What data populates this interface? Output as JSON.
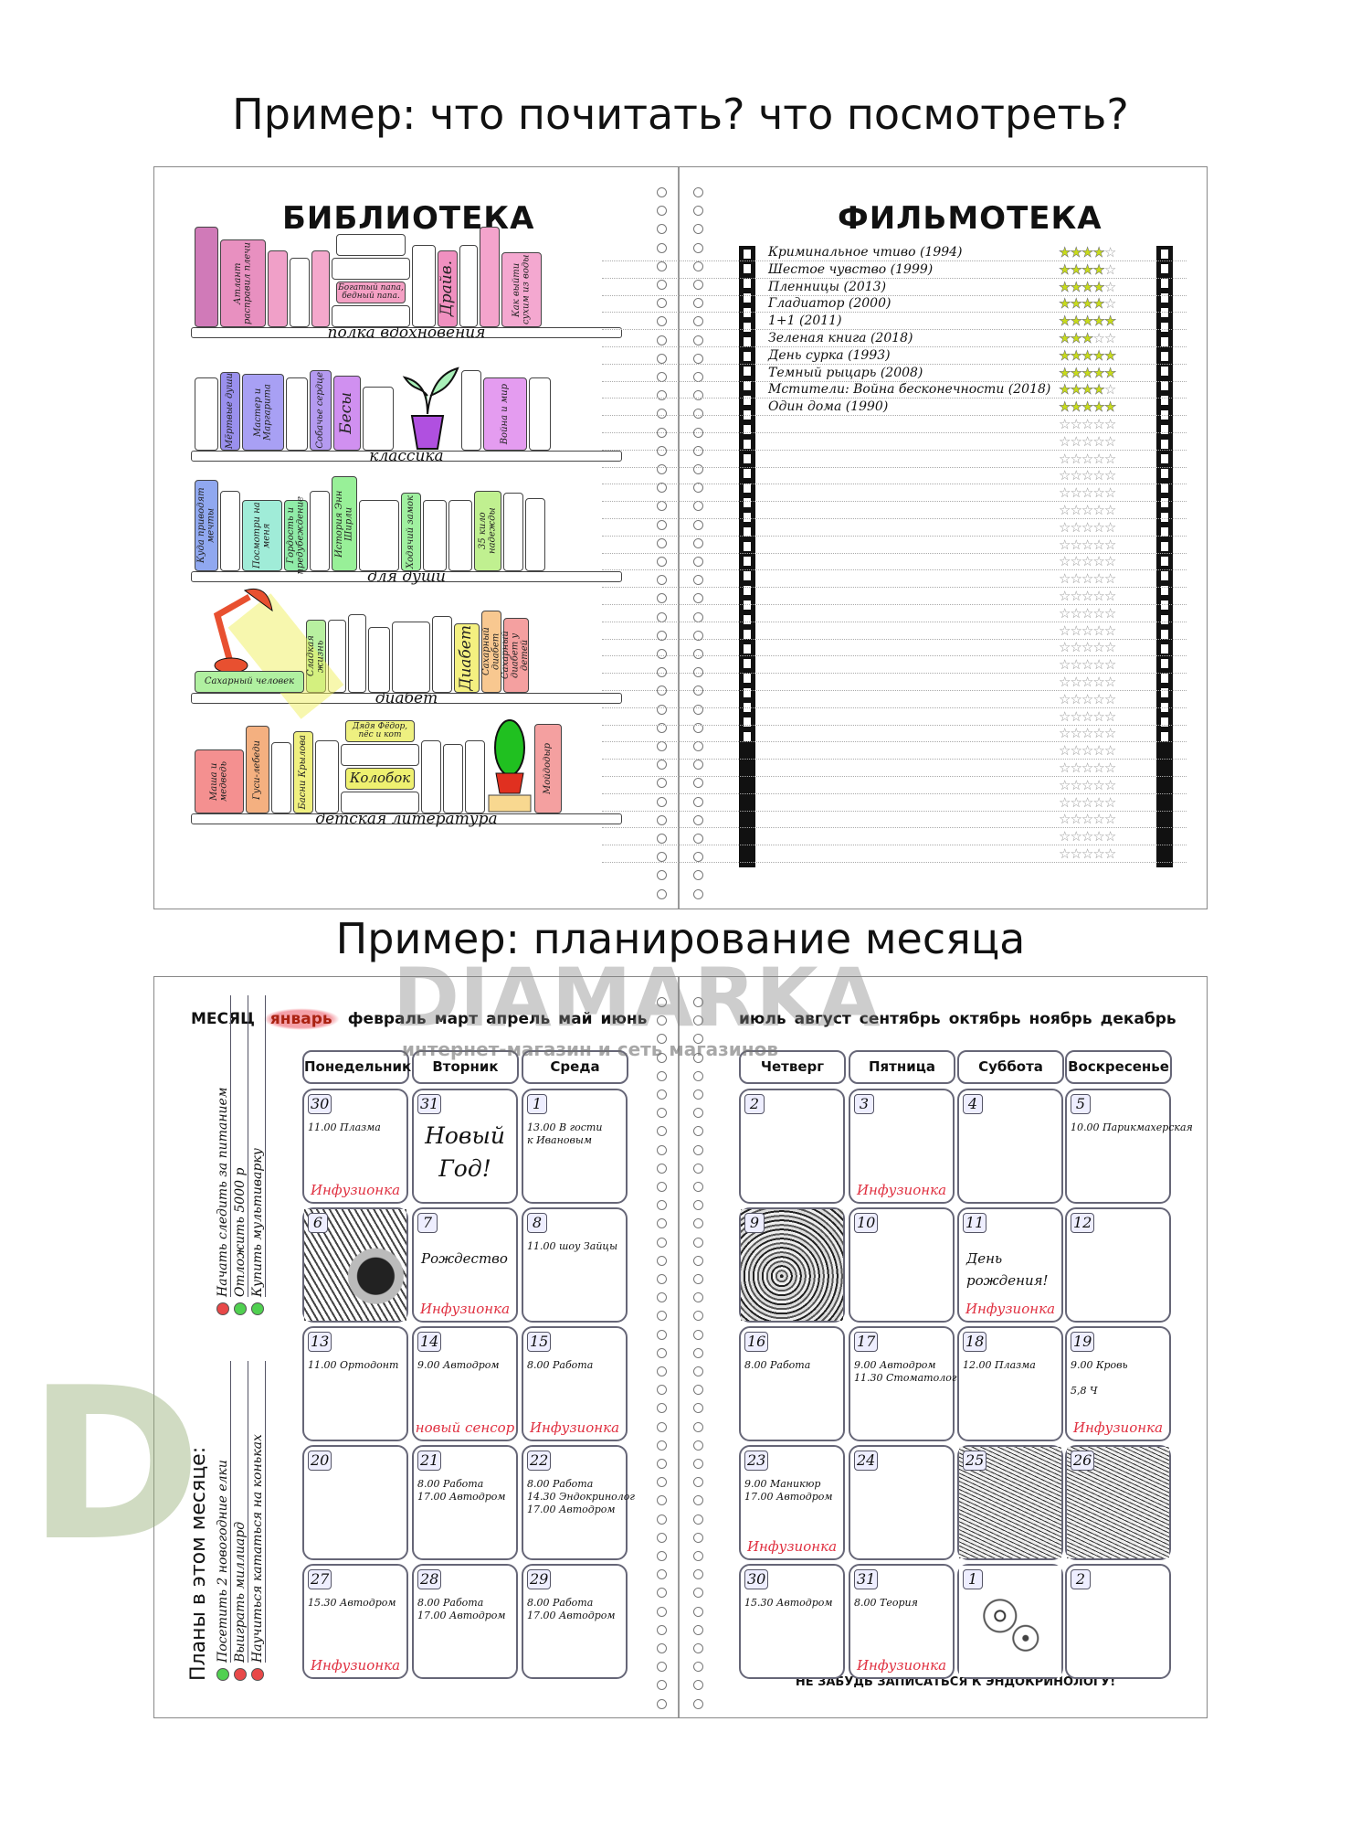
{
  "titles": {
    "top": "Пример: что почитать? что посмотреть?",
    "bottom": "Пример: планирование месяца"
  },
  "watermark": {
    "logo": "D",
    "brand": "DIAMARKA",
    "tagline": "интернет-магазин и сеть магазинов"
  },
  "library": {
    "title": "БИБЛИОТЕКА",
    "shelves": [
      {
        "label": "полка вдохновения",
        "books": [
          {
            "title": "",
            "color": "#d07ab8"
          },
          {
            "title": "Атлант расправил плечи",
            "color": "#e890c0"
          },
          {
            "title": "",
            "color": "#f0a0c8"
          },
          {
            "title": "",
            "color": "#ffffff"
          },
          {
            "title": "",
            "color": "#f4a8cc"
          },
          {
            "stack": [
              "",
              "",
              "Богатый папа, бедный папа.",
              ""
            ],
            "colors": [
              "#ffffff",
              "#ffffff",
              "#f4a0c4",
              "#ffffff"
            ]
          },
          {
            "title": "",
            "color": "#ffffff"
          },
          {
            "title": "Драйв.",
            "color": "#f090c0"
          },
          {
            "title": "",
            "color": "#ffffff"
          },
          {
            "title": "",
            "color": "#f4a4cc"
          },
          {
            "title": "Как выйти сухим из воды",
            "color": "#f4a8d0"
          }
        ]
      },
      {
        "label": "классика",
        "books": [
          {
            "title": "",
            "color": "#ffffff"
          },
          {
            "title": "Мёртвые души",
            "color": "#9a90ee"
          },
          {
            "title": "Мастер и Маргарита",
            "color": "#a8a0f4"
          },
          {
            "title": "",
            "color": "#ffffff"
          },
          {
            "title": "Собачье сердце",
            "color": "#b49af0"
          },
          {
            "title": "Бесы",
            "color": "#d090f0"
          },
          {
            "title": "",
            "color": "#ffffff"
          },
          {
            "plant": "plant"
          },
          {
            "title": "",
            "color": "#ffffff"
          },
          {
            "title": "Война и мир",
            "color": "#e49cf0"
          },
          {
            "title": "",
            "color": "#ffffff"
          }
        ]
      },
      {
        "label": "для души",
        "books": [
          {
            "title": "Куда приводят мечты",
            "color": "#90a8f0"
          },
          {
            "title": "",
            "color": "#ffffff"
          },
          {
            "title": "Посмотри на меня",
            "color": "#a0ecd8"
          },
          {
            "title": "Гордость и предубеждение",
            "color": "#90eca8"
          },
          {
            "title": "",
            "color": "#ffffff"
          },
          {
            "title": "История Энн Ширли",
            "color": "#98f098"
          },
          {
            "title": "",
            "color": "#ffffff"
          },
          {
            "title": "Ходячий замок",
            "color": "#a0f0a0"
          },
          {
            "title": "",
            "color": "#ffffff"
          },
          {
            "title": "",
            "color": "#ffffff"
          },
          {
            "title": "35 кило надежды",
            "color": "#c0f090"
          },
          {
            "title": "",
            "color": "#ffffff"
          },
          {
            "title": "",
            "color": "#ffffff"
          }
        ]
      },
      {
        "label": "диабет",
        "books": [
          {
            "lamp": "lamp",
            "title": "Сахарный человек",
            "color": "#b0f0a0"
          },
          {
            "title": "Сладкая жизнь",
            "color": "#b8f0a0"
          },
          {
            "title": "",
            "color": "#ffffff"
          },
          {
            "title": "",
            "color": "#ffffff"
          },
          {
            "title": "",
            "color": "#ffffff"
          },
          {
            "title": "",
            "color": "#ffffff"
          },
          {
            "title": "",
            "color": "#ffffff"
          },
          {
            "title": "Диабет",
            "color": "#f4f080"
          },
          {
            "title": "Сахарный диабет",
            "color": "#f8c890"
          },
          {
            "title": "Сахарный диабет у детей",
            "color": "#f4a0a0"
          }
        ]
      },
      {
        "label": "детская литература",
        "books": [
          {
            "title": "Маша и медведь",
            "color": "#f49090"
          },
          {
            "title": "Гуси-лебеди",
            "color": "#f4b080"
          },
          {
            "title": "",
            "color": "#ffffff"
          },
          {
            "title": "Басни Крылова",
            "color": "#f0f080"
          },
          {
            "title": "",
            "color": "#ffffff"
          },
          {
            "stack": [
              "Дядя Фёдор, пёс и кот",
              "",
              "Колобок",
              ""
            ],
            "colors": [
              "#eef080",
              "#ffffff",
              "#eef070",
              "#ffffff"
            ]
          },
          {
            "title": "",
            "color": "#ffffff"
          },
          {
            "title": "",
            "color": "#ffffff"
          },
          {
            "title": "",
            "color": "#ffffff"
          },
          {
            "cactus": "cactus"
          },
          {
            "title": "Мойдодыр",
            "color": "#f4a0a0"
          }
        ]
      }
    ]
  },
  "filmoteka": {
    "title": "ФИЛЬМОТЕКА",
    "films": [
      {
        "title": "Криминальное чтиво (1994)",
        "rating": 4
      },
      {
        "title": "Шестое чувство (1999)",
        "rating": 4
      },
      {
        "title": "Пленницы (2013)",
        "rating": 4
      },
      {
        "title": "Гладиатор (2000)",
        "rating": 4
      },
      {
        "title": "1+1 (2011)",
        "rating": 5
      },
      {
        "title": "Зеленая книга (2018)",
        "rating": 3
      },
      {
        "title": "День сурка (1993)",
        "rating": 5
      },
      {
        "title": "Темный рыцарь (2008)",
        "rating": 5
      },
      {
        "title": "Мстители: Война бесконечности (2018)",
        "rating": 4
      },
      {
        "title": "Один дома (1990)",
        "rating": 5
      }
    ],
    "max_rating": 5,
    "empty_rows": 26,
    "star_color": "#c8dc1a"
  },
  "planner": {
    "month_label": "МЕСЯЦ",
    "months_left": [
      "январь",
      "февраль",
      "март",
      "апрель",
      "май",
      "июнь"
    ],
    "months_right": [
      "июль",
      "август",
      "сентябрь",
      "октябрь",
      "ноябрь",
      "декабрь"
    ],
    "selected_month": "январь",
    "days_left": [
      "Понедельник",
      "Вторник",
      "Среда"
    ],
    "days_right": [
      "Четверг",
      "Пятница",
      "Суббота",
      "Воскресенье"
    ],
    "plans_title": "Планы в этом месяце:",
    "plans": [
      {
        "text": "Посетить 2 новогодние елки",
        "status": "green"
      },
      {
        "text": "Выиграть миллиард",
        "status": "red"
      },
      {
        "text": "Научиться кататься на коньках",
        "status": "red"
      },
      {
        "text": "Начать следить за питанием",
        "status": "red"
      },
      {
        "text": "Отложить 5000 р",
        "status": "green"
      },
      {
        "text": "Купить мультиварку",
        "status": "green"
      }
    ],
    "status_colors": {
      "green": "#50d050",
      "red": "#e84848"
    },
    "left_weeks": [
      [
        {
          "n": "30",
          "lines": [
            "11.00 Плазма"
          ],
          "note": "Инфузионка"
        },
        {
          "n": "31",
          "big": "Новый Год!"
        },
        {
          "n": "1",
          "lines": [
            "13.00 В гости",
            "к Ивановым"
          ]
        }
      ],
      [
        {
          "n": "6",
          "image": "flower"
        },
        {
          "n": "7",
          "mid": "Рождество",
          "note": "Инфузионка"
        },
        {
          "n": "8",
          "lines": [
            "11.00 шоу Зайцы"
          ]
        }
      ],
      [
        {
          "n": "13",
          "lines": [
            "11.00 Ортодонт"
          ]
        },
        {
          "n": "14",
          "lines": [
            "9.00 Автодром"
          ],
          "note": "новый сенсор"
        },
        {
          "n": "15",
          "lines": [
            "8.00 Работа"
          ],
          "note": "Инфузионка"
        }
      ],
      [
        {
          "n": "20"
        },
        {
          "n": "21",
          "lines": [
            "8.00 Работа",
            "17.00 Автодром"
          ]
        },
        {
          "n": "22",
          "lines": [
            "8.00 Работа",
            "14.30 Эндокринолог",
            "17.00 Автодром"
          ]
        }
      ],
      [
        {
          "n": "27",
          "lines": [
            "15.30 Автодром"
          ],
          "note": "Инфузионка"
        },
        {
          "n": "28",
          "lines": [
            "8.00 Работа",
            "17.00 Автодром"
          ]
        },
        {
          "n": "29",
          "lines": [
            "8.00 Работа",
            "17.00 Автодром"
          ]
        }
      ]
    ],
    "right_weeks": [
      [
        {
          "n": "2"
        },
        {
          "n": "3",
          "note": "Инфузионка"
        },
        {
          "n": "4"
        },
        {
          "n": "5",
          "lines": [
            "10.00 Парикмахерская"
          ]
        }
      ],
      [
        {
          "n": "9",
          "image": "pattern"
        },
        {
          "n": "10"
        },
        {
          "n": "11",
          "mid": "День рождения!",
          "note": "Инфузионка"
        },
        {
          "n": "12"
        }
      ],
      [
        {
          "n": "16",
          "lines": [
            "8.00 Работа"
          ]
        },
        {
          "n": "17",
          "lines": [
            "9.00 Автодром",
            "11.30 Стоматолог"
          ]
        },
        {
          "n": "18",
          "lines": [
            "12.00 Плазма"
          ]
        },
        {
          "n": "19",
          "lines": [
            "9.00 Кровь",
            "",
            "   5,8 Ч"
          ],
          "note": "Инфузионка"
        }
      ],
      [
        {
          "n": "23",
          "lines": [
            "9.00 Маникюр",
            "17.00 Автодром"
          ],
          "note": "Инфузионка"
        },
        {
          "n": "24"
        },
        {
          "n": "25",
          "image": "mtn"
        },
        {
          "n": "26",
          "image": "mtn"
        }
      ],
      [
        {
          "n": "30",
          "lines": [
            "15.30 Автодром"
          ]
        },
        {
          "n": "31",
          "lines": [
            "8.00 Теория"
          ],
          "note": "Инфузионка"
        },
        {
          "n": "1",
          "image": "dand"
        },
        {
          "n": "2"
        }
      ]
    ],
    "footer": "НЕ ЗАБУДЬ ЗАПИСАТЬСЯ К ЭНДОКРИНОЛОГУ!"
  }
}
